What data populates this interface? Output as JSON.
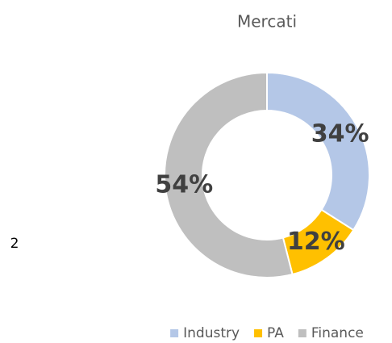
{
  "page_marker": "2",
  "chart_data": {
    "type": "pie",
    "donut": true,
    "title": "Mercati",
    "categories": [
      "Industry",
      "PA",
      "Finance"
    ],
    "values": [
      34,
      12,
      54
    ],
    "value_labels": [
      "34%",
      "12%",
      "54%"
    ],
    "colors": [
      "#b4c7e7",
      "#ffc000",
      "#bfbfbf"
    ],
    "legend": "bottom"
  }
}
